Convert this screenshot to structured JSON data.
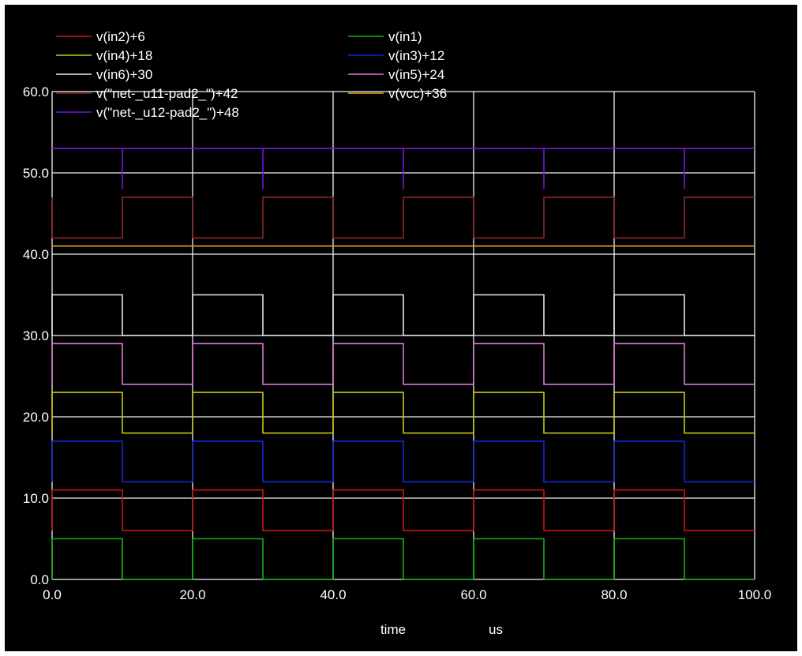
{
  "chart_data": {
    "type": "line",
    "title": "",
    "xlabel": "time",
    "xunit": "us",
    "ylabel": "",
    "xlim": [
      0,
      100
    ],
    "ylim": [
      0,
      60
    ],
    "xticks": [
      "0.0",
      "20.0",
      "40.0",
      "60.0",
      "80.0",
      "100.0"
    ],
    "yticks": [
      "0.0",
      "10.0",
      "20.0",
      "30.0",
      "40.0",
      "50.0",
      "60.0"
    ],
    "grid": true,
    "legend_placement": "top",
    "series": [
      {
        "name": "v(in2)+6",
        "color": "#c81414",
        "x": [
          0,
          0,
          10,
          10,
          20,
          20,
          30,
          30,
          40,
          40,
          50,
          50,
          60,
          60,
          70,
          70,
          80,
          80,
          90,
          90,
          100
        ],
        "y": [
          6,
          11,
          11,
          6,
          6,
          11,
          11,
          6,
          6,
          11,
          11,
          6,
          6,
          11,
          11,
          6,
          6,
          11,
          11,
          6,
          6
        ]
      },
      {
        "name": "v(in1)",
        "color": "#14b414",
        "x": [
          0,
          0,
          10,
          10,
          20,
          20,
          30,
          30,
          40,
          40,
          50,
          50,
          60,
          60,
          70,
          70,
          80,
          80,
          90,
          90,
          100
        ],
        "y": [
          0,
          5,
          5,
          0,
          0,
          5,
          5,
          0,
          0,
          5,
          5,
          0,
          0,
          5,
          5,
          0,
          0,
          5,
          5,
          0,
          0
        ]
      },
      {
        "name": "v(in4)+18",
        "color": "#c8c814",
        "x": [
          0,
          0,
          10,
          10,
          20,
          20,
          30,
          30,
          40,
          40,
          50,
          50,
          60,
          60,
          70,
          70,
          80,
          80,
          90,
          90,
          100
        ],
        "y": [
          18,
          23,
          23,
          18,
          18,
          23,
          23,
          18,
          18,
          23,
          23,
          18,
          18,
          23,
          23,
          18,
          18,
          23,
          23,
          18,
          18
        ]
      },
      {
        "name": "v(in3)+12",
        "color": "#1428d2",
        "x": [
          0,
          0,
          10,
          10,
          20,
          20,
          30,
          30,
          40,
          40,
          50,
          50,
          60,
          60,
          70,
          70,
          80,
          80,
          90,
          90,
          100
        ],
        "y": [
          12,
          17,
          17,
          12,
          12,
          17,
          17,
          12,
          12,
          17,
          17,
          12,
          12,
          17,
          17,
          12,
          12,
          17,
          17,
          12,
          12
        ]
      },
      {
        "name": "v(in6)+30",
        "color": "#e6e6e6",
        "x": [
          0,
          0,
          10,
          10,
          20,
          20,
          30,
          30,
          40,
          40,
          50,
          50,
          60,
          60,
          70,
          70,
          80,
          80,
          90,
          90,
          100
        ],
        "y": [
          30,
          35,
          35,
          30,
          30,
          35,
          35,
          30,
          30,
          35,
          35,
          30,
          30,
          35,
          35,
          30,
          30,
          35,
          35,
          30,
          30
        ]
      },
      {
        "name": "v(in5)+24",
        "color": "#dc78dc",
        "x": [
          0,
          0,
          10,
          10,
          20,
          20,
          30,
          30,
          40,
          40,
          50,
          50,
          60,
          60,
          70,
          70,
          80,
          80,
          90,
          90,
          100
        ],
        "y": [
          24,
          29,
          29,
          24,
          24,
          29,
          29,
          24,
          24,
          29,
          29,
          24,
          24,
          29,
          29,
          24,
          24,
          29,
          29,
          24,
          24
        ]
      },
      {
        "name": "v(\"net-_u11-pad2_\")+42",
        "color": "#8c2828",
        "x": [
          0,
          0,
          10,
          10,
          20,
          20,
          30,
          30,
          40,
          40,
          50,
          50,
          60,
          60,
          70,
          70,
          80,
          80,
          90,
          90,
          100
        ],
        "y": [
          47,
          42,
          42,
          47,
          47,
          42,
          42,
          47,
          47,
          42,
          42,
          47,
          47,
          42,
          42,
          47,
          47,
          42,
          42,
          47,
          47
        ]
      },
      {
        "name": "v(vcc)+36",
        "color": "#e6a01e",
        "x": [
          0,
          100
        ],
        "y": [
          41,
          41
        ]
      },
      {
        "name": "v(\"net-_u12-pad2_\")+48",
        "color": "#7814dc",
        "x": [
          0,
          10,
          10,
          10,
          10,
          30,
          30,
          30,
          30,
          50,
          50,
          50,
          50,
          70,
          70,
          70,
          70,
          90,
          90,
          90,
          90,
          100
        ],
        "y": [
          53,
          53,
          48,
          48,
          53,
          53,
          48,
          48,
          53,
          53,
          48,
          48,
          53,
          53,
          48,
          48,
          53,
          53,
          48,
          48,
          53,
          53
        ]
      }
    ]
  }
}
